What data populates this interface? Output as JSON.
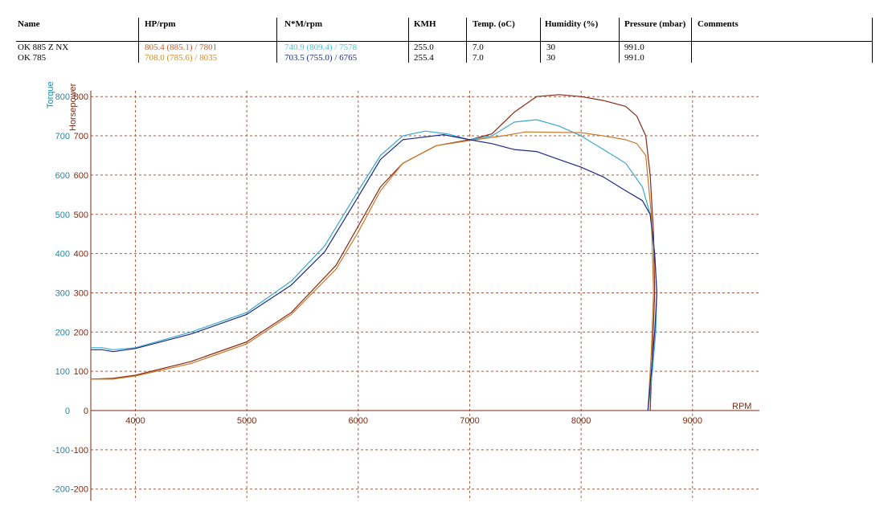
{
  "table": {
    "headers": [
      "Name",
      "HP/rpm",
      "N*M/rpm",
      "KMH",
      "Temp. (oC)",
      "Humidity (%)",
      "Pressure (mbar)",
      "Comments"
    ],
    "rows": [
      {
        "name": "OK 885 Z NX",
        "hp": "805.4 (885.1) / 7801",
        "nm": "740.9 (809.4) / 7578",
        "kmh": "255.0",
        "temp": "7.0",
        "humidity": "30",
        "pressure": "991.0",
        "comments": ""
      },
      {
        "name": "OK 785",
        "hp": "708.0 (785.6) / 8035",
        "nm": "703.5 (755.0) / 6765",
        "kmh": "255.4",
        "temp": "7.0",
        "humidity": "30",
        "pressure": "991.0",
        "comments": ""
      }
    ],
    "colors": {
      "hp1": "#c8602a",
      "nm1": "#49c4e0",
      "hp2": "#d08a2a",
      "nm2": "#1c2a8a"
    }
  },
  "chart_data": {
    "type": "line",
    "xlabel": "RPM",
    "ylabel_left": "Torque",
    "ylabel_right": "Horsepower",
    "xlim": [
      3600,
      9600
    ],
    "ylim": [
      -230,
      815
    ],
    "x_ticks": [
      4000,
      5000,
      6000,
      7000,
      8000,
      9000
    ],
    "y_ticks": [
      -200,
      -100,
      0,
      100,
      200,
      300,
      400,
      500,
      600,
      700,
      800
    ],
    "grid": true,
    "series": [
      {
        "name": "OK 885 Z NX HP",
        "color": "#8a2a14",
        "points": [
          [
            3600,
            80
          ],
          [
            3800,
            82
          ],
          [
            4000,
            90
          ],
          [
            4500,
            125
          ],
          [
            5000,
            175
          ],
          [
            5400,
            250
          ],
          [
            5800,
            370
          ],
          [
            6000,
            470
          ],
          [
            6200,
            570
          ],
          [
            6400,
            630
          ],
          [
            6700,
            675
          ],
          [
            7000,
            690
          ],
          [
            7200,
            705
          ],
          [
            7400,
            760
          ],
          [
            7600,
            800
          ],
          [
            7800,
            805
          ],
          [
            8000,
            800
          ],
          [
            8200,
            790
          ],
          [
            8400,
            775
          ],
          [
            8500,
            750
          ],
          [
            8580,
            700
          ],
          [
            8620,
            600
          ],
          [
            8650,
            450
          ],
          [
            8660,
            300
          ],
          [
            8640,
            150
          ],
          [
            8620,
            0
          ]
        ]
      },
      {
        "name": "OK 885 Z NX Torque",
        "color": "#3aa8d0",
        "points": [
          [
            3600,
            160
          ],
          [
            3700,
            160
          ],
          [
            3800,
            155
          ],
          [
            4000,
            160
          ],
          [
            4500,
            200
          ],
          [
            5000,
            250
          ],
          [
            5400,
            330
          ],
          [
            5700,
            420
          ],
          [
            6000,
            560
          ],
          [
            6200,
            650
          ],
          [
            6400,
            700
          ],
          [
            6600,
            712
          ],
          [
            6800,
            705
          ],
          [
            7000,
            690
          ],
          [
            7200,
            700
          ],
          [
            7400,
            735
          ],
          [
            7600,
            741
          ],
          [
            7800,
            725
          ],
          [
            8000,
            700
          ],
          [
            8200,
            665
          ],
          [
            8400,
            630
          ],
          [
            8550,
            570
          ],
          [
            8620,
            500
          ],
          [
            8660,
            400
          ],
          [
            8680,
            300
          ],
          [
            8670,
            200
          ],
          [
            8640,
            100
          ],
          [
            8600,
            0
          ]
        ]
      },
      {
        "name": "OK 785 HP",
        "color": "#c87a2a",
        "points": [
          [
            3600,
            80
          ],
          [
            3800,
            80
          ],
          [
            4000,
            88
          ],
          [
            4500,
            120
          ],
          [
            5000,
            170
          ],
          [
            5400,
            245
          ],
          [
            5800,
            360
          ],
          [
            6000,
            455
          ],
          [
            6200,
            560
          ],
          [
            6400,
            630
          ],
          [
            6700,
            675
          ],
          [
            7000,
            688
          ],
          [
            7300,
            700
          ],
          [
            7500,
            710
          ],
          [
            8000,
            708
          ],
          [
            8200,
            700
          ],
          [
            8400,
            690
          ],
          [
            8500,
            680
          ],
          [
            8580,
            650
          ],
          [
            8630,
            500
          ],
          [
            8650,
            300
          ],
          [
            8630,
            150
          ],
          [
            8600,
            0
          ]
        ]
      },
      {
        "name": "OK 785 Torque",
        "color": "#1c2a8a",
        "points": [
          [
            3600,
            155
          ],
          [
            3700,
            155
          ],
          [
            3800,
            150
          ],
          [
            4000,
            158
          ],
          [
            4500,
            195
          ],
          [
            5000,
            245
          ],
          [
            5400,
            320
          ],
          [
            5700,
            405
          ],
          [
            6000,
            545
          ],
          [
            6200,
            640
          ],
          [
            6400,
            690
          ],
          [
            6765,
            703
          ],
          [
            7000,
            690
          ],
          [
            7200,
            680
          ],
          [
            7400,
            665
          ],
          [
            7600,
            660
          ],
          [
            7800,
            640
          ],
          [
            8000,
            620
          ],
          [
            8200,
            595
          ],
          [
            8400,
            560
          ],
          [
            8550,
            535
          ],
          [
            8620,
            500
          ],
          [
            8660,
            400
          ],
          [
            8680,
            300
          ],
          [
            8660,
            200
          ],
          [
            8630,
            100
          ],
          [
            8600,
            0
          ]
        ]
      }
    ]
  }
}
